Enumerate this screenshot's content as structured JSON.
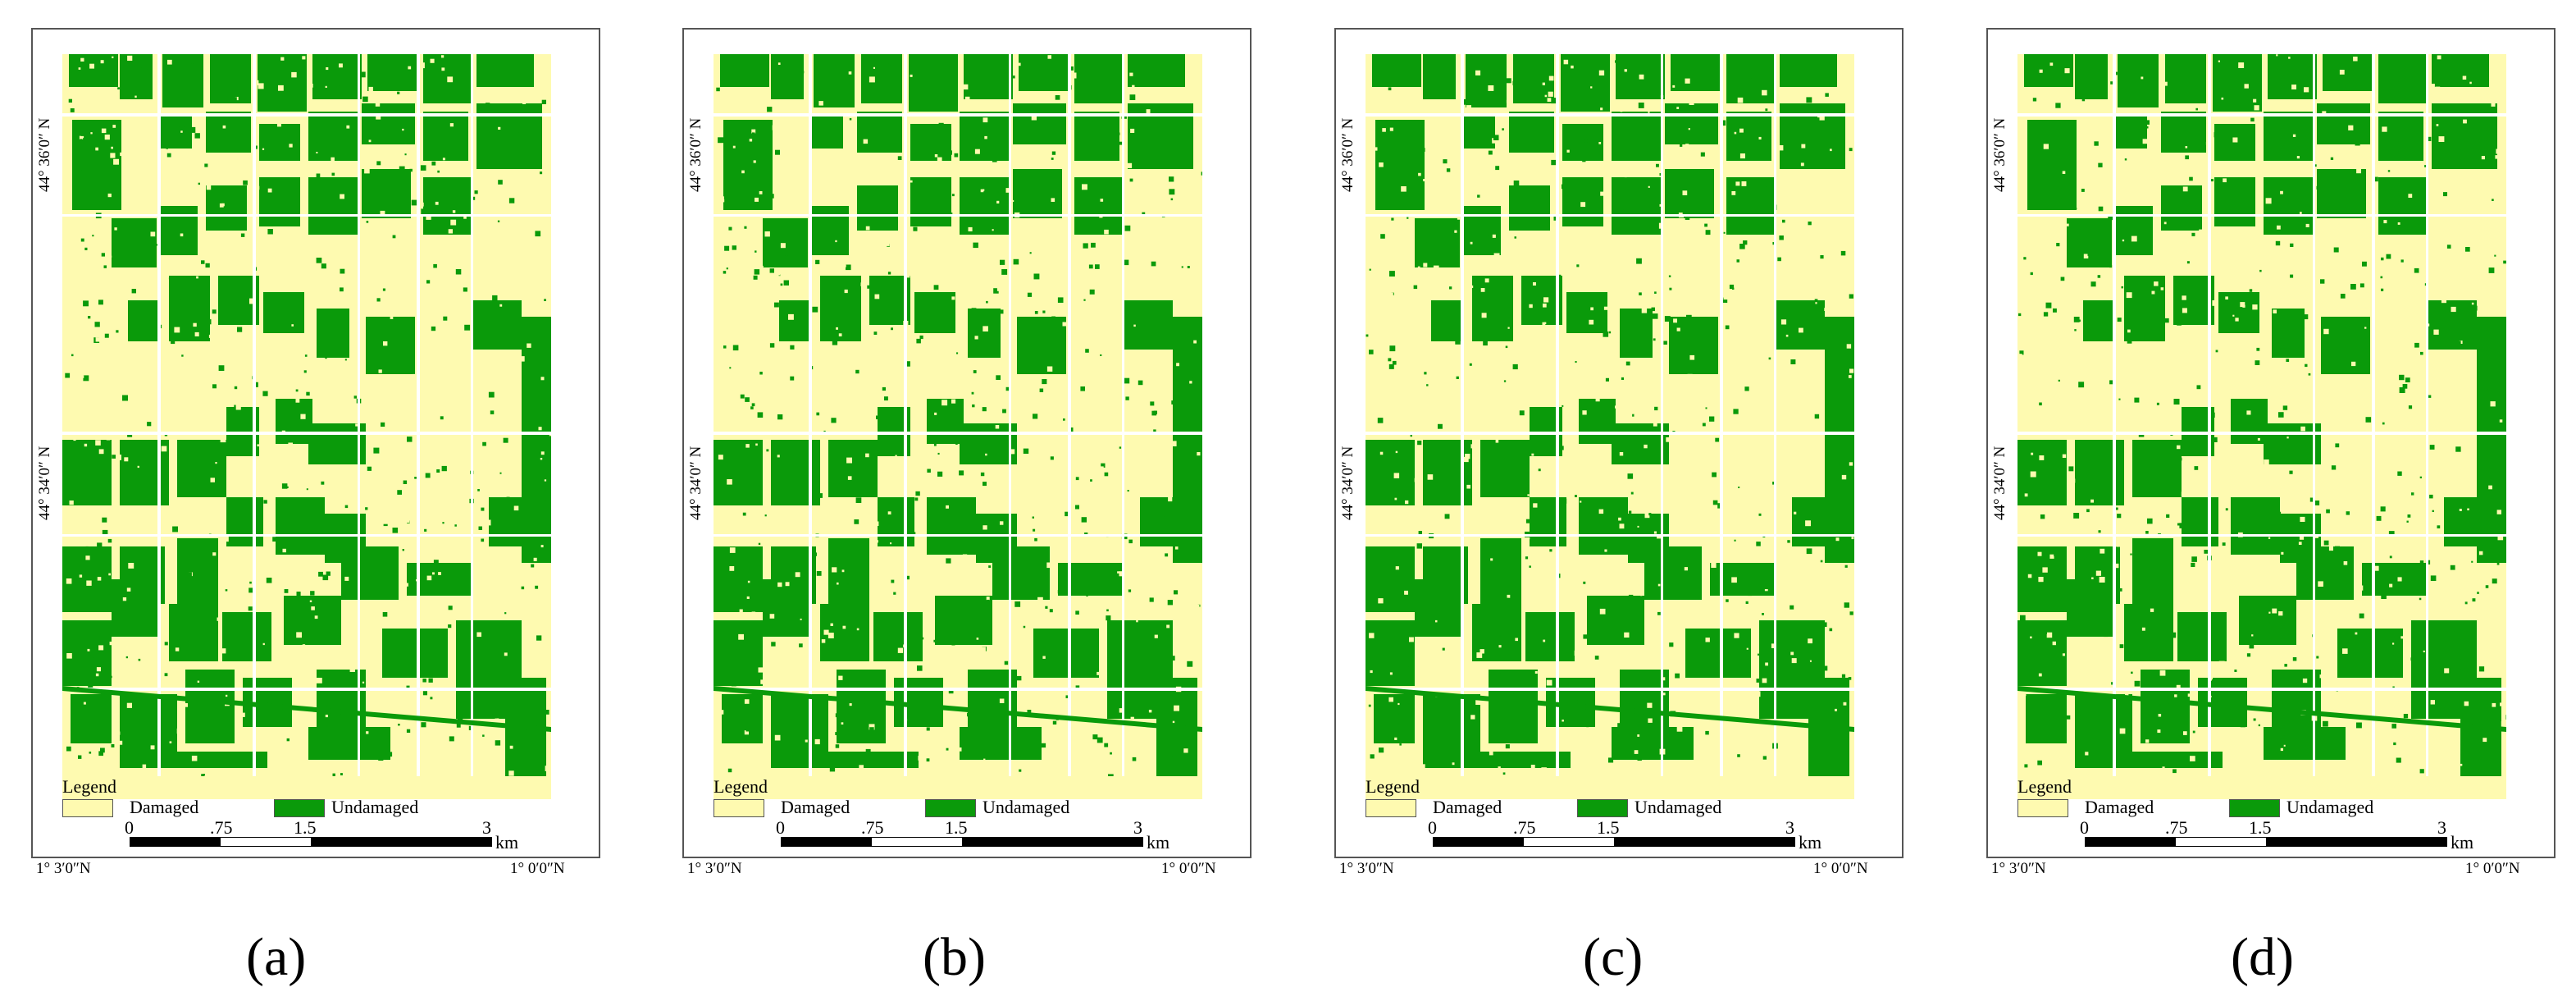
{
  "panels": [
    {
      "id": "a",
      "caption": "(a)"
    },
    {
      "id": "b",
      "caption": "(b)"
    },
    {
      "id": "c",
      "caption": "(c)"
    },
    {
      "id": "d",
      "caption": "(d)"
    }
  ],
  "coordinates": {
    "lat_top": "44° 36′0″ N",
    "lat_bottom": "44° 34′0″ N",
    "lon_left": "1° 3′0″N",
    "lon_right": "1° 0′0″N"
  },
  "legend": {
    "title": "Legend",
    "items": [
      {
        "label": "Damaged",
        "color": "#fefab0"
      },
      {
        "label": "Undamaged",
        "color": "#0a9a0a"
      }
    ]
  },
  "scale_bar": {
    "ticks": [
      "0",
      ".75",
      "1.5",
      "3"
    ],
    "unit": "km"
  },
  "colors": {
    "damaged": "#fefab0",
    "undamaged": "#0a9a0a"
  }
}
